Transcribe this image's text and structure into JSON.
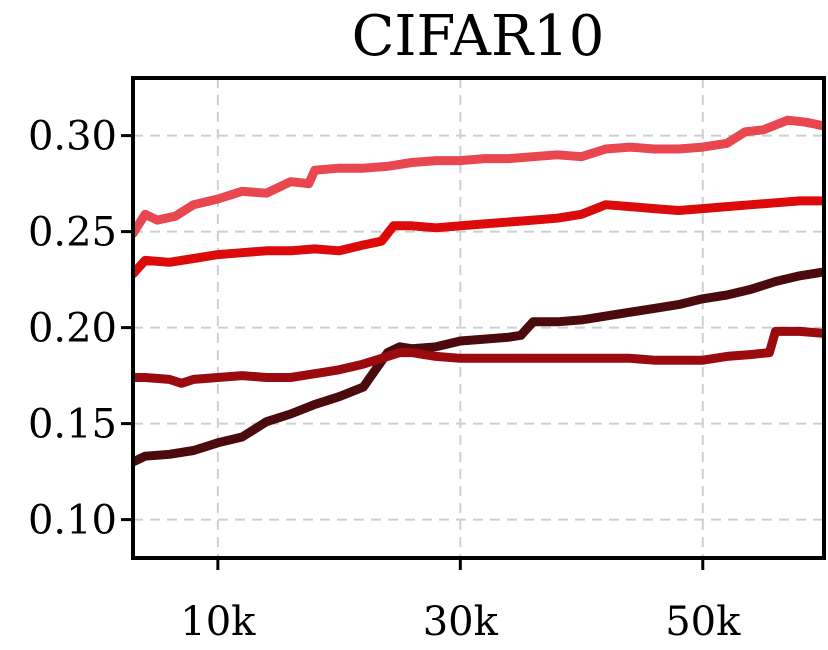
{
  "chart_data": {
    "type": "line",
    "title": "CIFAR10",
    "xlabel": "",
    "ylabel": "",
    "xlim": [
      3000,
      60000
    ],
    "ylim": [
      0.08,
      0.33
    ],
    "xticks": [
      10000,
      30000,
      50000
    ],
    "xtick_labels": [
      "10k",
      "30k",
      "50k"
    ],
    "yticks": [
      0.1,
      0.15,
      0.2,
      0.25,
      0.3
    ],
    "ytick_labels": [
      "0.10",
      "0.15",
      "0.20",
      "0.25",
      "0.30"
    ],
    "grid": true,
    "legend": "none",
    "series": [
      {
        "color": "#e8474f",
        "x": [
          3000,
          4000,
          5000,
          6500,
          8000,
          10000,
          12000,
          14000,
          16000,
          17500,
          18000,
          20000,
          22000,
          24000,
          26000,
          28000,
          30000,
          32000,
          34000,
          36000,
          38000,
          40000,
          42000,
          44000,
          46000,
          48000,
          50000,
          52000,
          53500,
          55000,
          57000,
          58500,
          60000
        ],
        "y": [
          0.249,
          0.259,
          0.256,
          0.258,
          0.264,
          0.267,
          0.271,
          0.27,
          0.276,
          0.275,
          0.282,
          0.283,
          0.283,
          0.284,
          0.286,
          0.287,
          0.287,
          0.288,
          0.288,
          0.289,
          0.29,
          0.289,
          0.293,
          0.294,
          0.293,
          0.293,
          0.294,
          0.296,
          0.302,
          0.303,
          0.308,
          0.307,
          0.305
        ]
      },
      {
        "color": "#dc0a0a",
        "x": [
          3000,
          4000,
          6000,
          8000,
          10000,
          12000,
          14000,
          16000,
          18000,
          20000,
          22000,
          23500,
          24500,
          26000,
          28000,
          30000,
          32000,
          34000,
          36000,
          38000,
          40000,
          42000,
          44000,
          46000,
          48000,
          50000,
          52000,
          54000,
          56000,
          58000,
          60000
        ],
        "y": [
          0.228,
          0.235,
          0.234,
          0.236,
          0.238,
          0.239,
          0.24,
          0.24,
          0.241,
          0.24,
          0.243,
          0.245,
          0.253,
          0.253,
          0.252,
          0.253,
          0.254,
          0.255,
          0.256,
          0.257,
          0.259,
          0.264,
          0.263,
          0.262,
          0.261,
          0.262,
          0.263,
          0.264,
          0.265,
          0.266,
          0.266
        ]
      },
      {
        "color": "#4a0a0e",
        "x": [
          3000,
          4000,
          6000,
          8000,
          10000,
          12000,
          13000,
          14000,
          16000,
          18000,
          20000,
          22000,
          23000,
          24000,
          25000,
          26000,
          28000,
          30000,
          32000,
          34000,
          35000,
          36000,
          38000,
          40000,
          42000,
          44000,
          46000,
          48000,
          50000,
          52000,
          54000,
          56000,
          58000,
          60000
        ],
        "y": [
          0.13,
          0.133,
          0.134,
          0.136,
          0.14,
          0.143,
          0.147,
          0.151,
          0.155,
          0.16,
          0.164,
          0.169,
          0.178,
          0.187,
          0.19,
          0.189,
          0.19,
          0.193,
          0.194,
          0.195,
          0.196,
          0.203,
          0.203,
          0.204,
          0.206,
          0.208,
          0.21,
          0.212,
          0.215,
          0.217,
          0.22,
          0.224,
          0.227,
          0.229
        ]
      },
      {
        "color": "#9a0a0e",
        "x": [
          3000,
          4000,
          6000,
          7000,
          8000,
          10000,
          12000,
          14000,
          16000,
          18000,
          20000,
          22000,
          24000,
          25000,
          26000,
          27000,
          28000,
          30000,
          32000,
          34000,
          36000,
          38000,
          40000,
          42000,
          44000,
          46000,
          48000,
          50000,
          52000,
          54000,
          55500,
          56000,
          58000,
          60000
        ],
        "y": [
          0.174,
          0.174,
          0.173,
          0.171,
          0.173,
          0.174,
          0.175,
          0.174,
          0.174,
          0.176,
          0.178,
          0.181,
          0.185,
          0.187,
          0.187,
          0.186,
          0.185,
          0.184,
          0.184,
          0.184,
          0.184,
          0.184,
          0.184,
          0.184,
          0.184,
          0.183,
          0.183,
          0.183,
          0.185,
          0.186,
          0.187,
          0.198,
          0.198,
          0.197
        ]
      }
    ]
  }
}
